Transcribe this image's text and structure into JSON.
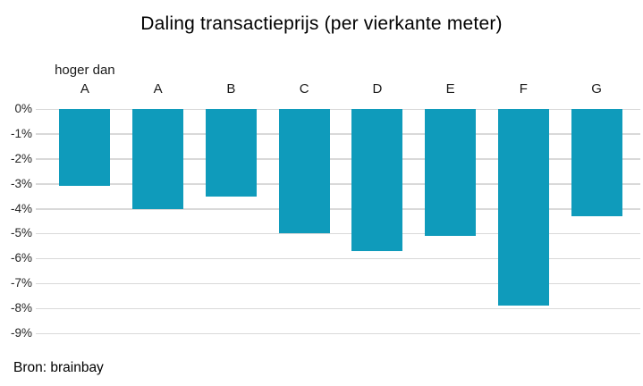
{
  "source": "Bron: brainbay",
  "colors": {
    "bar": "#0F9BBB",
    "gridline": "#D9D9D9",
    "axis_text": "#262626",
    "title_text": "#000000"
  },
  "chart_data": {
    "type": "bar",
    "title": "Daling transactieprijs (per vierkante meter)",
    "categories": [
      "hoger dan A",
      "A",
      "B",
      "C",
      "D",
      "E",
      "F",
      "G"
    ],
    "category_lines": [
      [
        "hoger dan",
        "A"
      ],
      [
        "",
        "A"
      ],
      [
        "",
        "B"
      ],
      [
        "",
        "C"
      ],
      [
        "",
        "D"
      ],
      [
        "",
        "E"
      ],
      [
        "",
        "F"
      ],
      [
        "",
        "G"
      ]
    ],
    "values": [
      -3.1,
      -4.0,
      -3.5,
      -5.0,
      -5.7,
      -5.1,
      -7.9,
      -4.3
    ],
    "xlabel": "",
    "ylabel": "",
    "ylim": [
      -9,
      0
    ],
    "ytick_labels": [
      "0%",
      "-1%",
      "-2%",
      "-3%",
      "-4%",
      "-5%",
      "-6%",
      "-7%",
      "-8%",
      "-9%"
    ],
    "grid": true,
    "legend": false,
    "annotation": "Bron: brainbay"
  }
}
